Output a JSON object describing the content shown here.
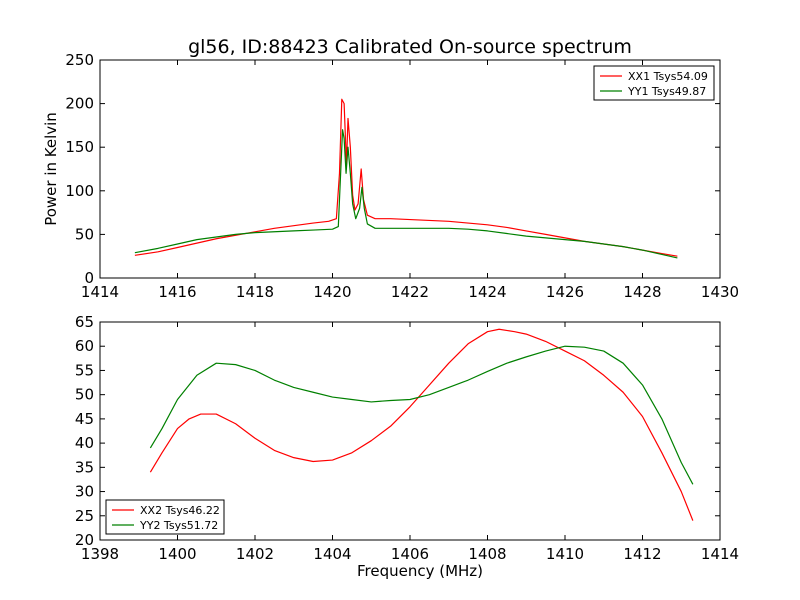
{
  "title": "gl56, ID:88423 Calibrated On-source spectrum",
  "colors": {
    "xx": "#ff0000",
    "yy": "#008000"
  },
  "chart_data": [
    {
      "type": "line",
      "ylabel": "Power in Kelvin",
      "xlabel": "",
      "xlim": [
        1414,
        1430
      ],
      "ylim": [
        0,
        250
      ],
      "xticks": [
        "1414",
        "1416",
        "1418",
        "1420",
        "1422",
        "1424",
        "1426",
        "1428",
        "1430"
      ],
      "yticks": [
        "0",
        "50",
        "100",
        "150",
        "200",
        "250"
      ],
      "legend_position": "top-right",
      "series": [
        {
          "name": "XX1 Tsys54.09",
          "color": "#ff0000",
          "points": [
            [
              1414.9,
              26
            ],
            [
              1415.5,
              30
            ],
            [
              1416,
              35
            ],
            [
              1416.5,
              40
            ],
            [
              1417,
              45
            ],
            [
              1417.5,
              49
            ],
            [
              1418,
              53
            ],
            [
              1418.5,
              57
            ],
            [
              1419,
              60
            ],
            [
              1419.5,
              63
            ],
            [
              1419.9,
              65
            ],
            [
              1420.1,
              68
            ],
            [
              1420.18,
              120
            ],
            [
              1420.24,
              205
            ],
            [
              1420.3,
              200
            ],
            [
              1420.36,
              130
            ],
            [
              1420.4,
              183
            ],
            [
              1420.46,
              150
            ],
            [
              1420.52,
              95
            ],
            [
              1420.58,
              78
            ],
            [
              1420.66,
              85
            ],
            [
              1420.74,
              125
            ],
            [
              1420.8,
              90
            ],
            [
              1420.9,
              72
            ],
            [
              1421.1,
              68
            ],
            [
              1421.5,
              68
            ],
            [
              1422,
              67
            ],
            [
              1422.5,
              66
            ],
            [
              1423,
              65
            ],
            [
              1423.5,
              63
            ],
            [
              1424,
              61
            ],
            [
              1424.5,
              58
            ],
            [
              1425,
              54
            ],
            [
              1425.5,
              50
            ],
            [
              1426,
              46
            ],
            [
              1426.5,
              42
            ],
            [
              1427,
              39
            ],
            [
              1427.5,
              36
            ],
            [
              1428,
              32
            ],
            [
              1428.5,
              28
            ],
            [
              1428.9,
              25
            ]
          ]
        },
        {
          "name": "YY1 Tsys49.87",
          "color": "#008000",
          "points": [
            [
              1414.9,
              29
            ],
            [
              1415.5,
              34
            ],
            [
              1416,
              39
            ],
            [
              1416.5,
              44
            ],
            [
              1417,
              47
            ],
            [
              1417.5,
              50
            ],
            [
              1418,
              52
            ],
            [
              1418.5,
              53
            ],
            [
              1419,
              54
            ],
            [
              1419.5,
              55
            ],
            [
              1420,
              56
            ],
            [
              1420.15,
              59
            ],
            [
              1420.2,
              110
            ],
            [
              1420.26,
              170
            ],
            [
              1420.3,
              160
            ],
            [
              1420.35,
              120
            ],
            [
              1420.4,
              150
            ],
            [
              1420.46,
              120
            ],
            [
              1420.52,
              85
            ],
            [
              1420.6,
              68
            ],
            [
              1420.7,
              80
            ],
            [
              1420.76,
              104
            ],
            [
              1420.82,
              80
            ],
            [
              1420.9,
              62
            ],
            [
              1421.1,
              57
            ],
            [
              1421.5,
              57
            ],
            [
              1422,
              57
            ],
            [
              1422.5,
              57
            ],
            [
              1423,
              57
            ],
            [
              1423.5,
              56
            ],
            [
              1424,
              54
            ],
            [
              1424.5,
              51
            ],
            [
              1425,
              48
            ],
            [
              1425.5,
              46
            ],
            [
              1426,
              44
            ],
            [
              1426.5,
              42
            ],
            [
              1427,
              39
            ],
            [
              1427.5,
              36
            ],
            [
              1428,
              32
            ],
            [
              1428.5,
              27
            ],
            [
              1428.9,
              23
            ]
          ]
        }
      ]
    },
    {
      "type": "line",
      "ylabel": "",
      "xlabel": "Frequency (MHz)",
      "xlim": [
        1398,
        1414
      ],
      "ylim": [
        20,
        65
      ],
      "xticks": [
        "1398",
        "1400",
        "1402",
        "1404",
        "1406",
        "1408",
        "1410",
        "1412",
        "1414"
      ],
      "yticks": [
        "20",
        "25",
        "30",
        "35",
        "40",
        "45",
        "50",
        "55",
        "60",
        "65"
      ],
      "legend_position": "bottom-left",
      "series": [
        {
          "name": "XX2 Tsys46.22",
          "color": "#ff0000",
          "points": [
            [
              1399.3,
              34
            ],
            [
              1399.6,
              38
            ],
            [
              1400,
              43
            ],
            [
              1400.3,
              45
            ],
            [
              1400.6,
              46
            ],
            [
              1401,
              46
            ],
            [
              1401.5,
              44
            ],
            [
              1402,
              41
            ],
            [
              1402.5,
              38.5
            ],
            [
              1403,
              37
            ],
            [
              1403.5,
              36.2
            ],
            [
              1404,
              36.5
            ],
            [
              1404.5,
              38
            ],
            [
              1405,
              40.5
            ],
            [
              1405.5,
              43.5
            ],
            [
              1406,
              47.5
            ],
            [
              1406.5,
              52
            ],
            [
              1407,
              56.5
            ],
            [
              1407.5,
              60.5
            ],
            [
              1408,
              63
            ],
            [
              1408.3,
              63.5
            ],
            [
              1408.7,
              63
            ],
            [
              1409,
              62.5
            ],
            [
              1409.5,
              61
            ],
            [
              1410,
              59
            ],
            [
              1410.5,
              57
            ],
            [
              1411,
              54
            ],
            [
              1411.5,
              50.5
            ],
            [
              1412,
              45.5
            ],
            [
              1412.5,
              38
            ],
            [
              1413,
              30
            ],
            [
              1413.3,
              24
            ]
          ]
        },
        {
          "name": "YY2 Tsys51.72",
          "color": "#008000",
          "points": [
            [
              1399.3,
              39
            ],
            [
              1399.6,
              43
            ],
            [
              1400,
              49
            ],
            [
              1400.5,
              54
            ],
            [
              1401,
              56.5
            ],
            [
              1401.5,
              56.2
            ],
            [
              1402,
              55
            ],
            [
              1402.5,
              53
            ],
            [
              1403,
              51.5
            ],
            [
              1403.5,
              50.5
            ],
            [
              1404,
              49.5
            ],
            [
              1404.5,
              49
            ],
            [
              1405,
              48.5
            ],
            [
              1405.5,
              48.8
            ],
            [
              1406,
              49
            ],
            [
              1406.5,
              50
            ],
            [
              1407,
              51.5
            ],
            [
              1407.5,
              53
            ],
            [
              1408,
              54.8
            ],
            [
              1408.5,
              56.5
            ],
            [
              1409,
              57.8
            ],
            [
              1409.5,
              59
            ],
            [
              1410,
              60
            ],
            [
              1410.5,
              59.8
            ],
            [
              1411,
              59
            ],
            [
              1411.5,
              56.5
            ],
            [
              1412,
              52
            ],
            [
              1412.5,
              45
            ],
            [
              1413,
              36
            ],
            [
              1413.3,
              31.5
            ]
          ]
        }
      ]
    }
  ]
}
